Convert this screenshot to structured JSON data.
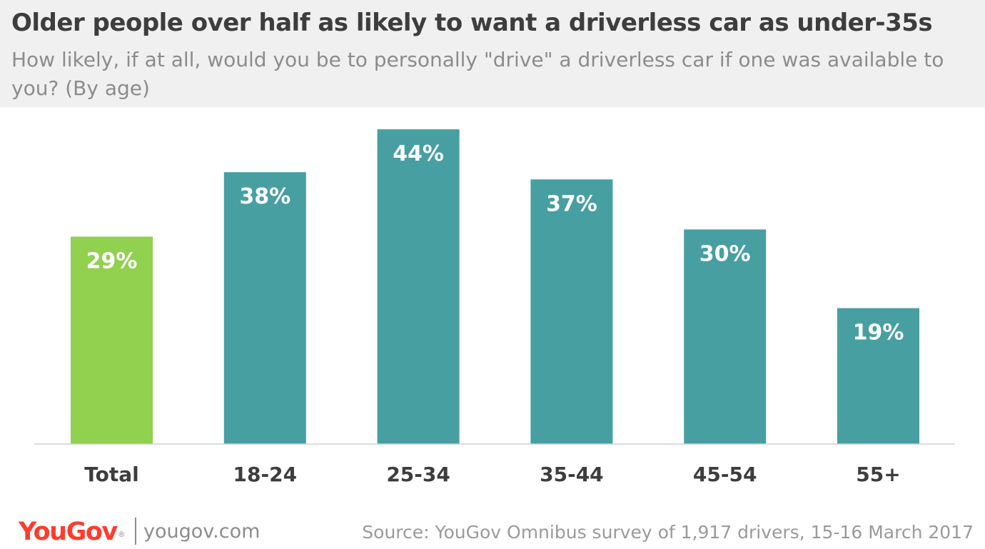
{
  "title": "Older people over half as likely to want a driverless car as under-35s",
  "subtitle": "How likely, if at all, would you be to personally \"drive\" a driverless car if one was available to you? (By age)",
  "chart_data": {
    "type": "bar",
    "categories": [
      "Total",
      "18-24",
      "25-34",
      "35-44",
      "45-54",
      "55+"
    ],
    "values": [
      29,
      38,
      44,
      37,
      30,
      19
    ],
    "value_labels": [
      "29%",
      "38%",
      "44%",
      "37%",
      "30%",
      "19%"
    ],
    "unit": "%",
    "ylim": [
      0,
      50
    ],
    "grid": false,
    "legend": "none",
    "colors": {
      "highlight": "#92d050",
      "bars": "#479fa2"
    },
    "highlight_category": "Total"
  },
  "footer": {
    "brand": "YouGov",
    "brand_mark": "®",
    "url": "yougov.com",
    "source": "Source: YouGov Omnibus survey of 1,917 drivers, 15-16 March 2017"
  }
}
